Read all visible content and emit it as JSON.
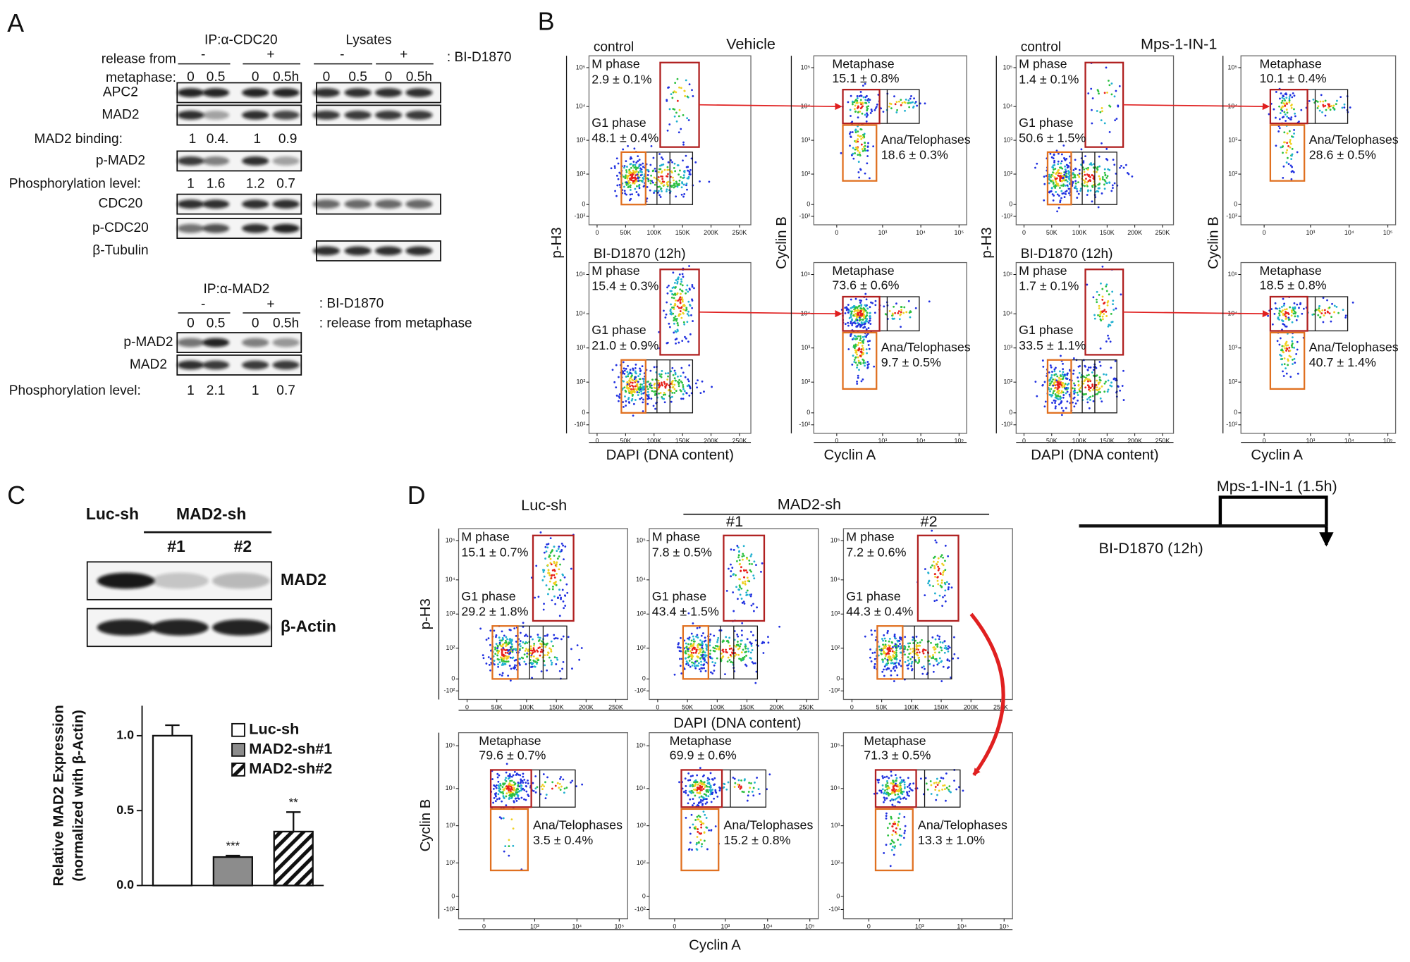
{
  "panel_a": {
    "label": "A",
    "cdc20_ip": {
      "title": "IP:α-CDC20",
      "treatment": [
        "-",
        "+"
      ],
      "times": [
        "0",
        "0.5",
        "0",
        "0.5h"
      ]
    },
    "lysates": {
      "title": "Lysates",
      "treatment": [
        "-",
        "+"
      ],
      "times": [
        "0",
        "0.5",
        "0",
        "0.5h"
      ]
    },
    "release_label": [
      "release from",
      "metaphase:"
    ],
    "drug_label": ": BI-D1870",
    "blots": {
      "apc2": "APC2",
      "mad2": "MAD2",
      "p_mad2": "p-MAD2",
      "cdc20": "CDC20",
      "p_cdc20": "p-CDC20",
      "tubulin": "β-Tubulin"
    },
    "mad2_binding": {
      "label": "MAD2 binding:",
      "values": [
        "1",
        "0.4.",
        "1",
        "0.9"
      ]
    },
    "phosphorylation": {
      "label": "Phosphorylation level:",
      "values": [
        "1",
        "1.6",
        "1.2",
        "0.7"
      ]
    },
    "mad2_ip": {
      "title": "IP:α-MAD2",
      "drug_label": ": BI-D1870",
      "treatment": [
        "-",
        "+"
      ],
      "times": [
        "0",
        "0.5",
        "0",
        "0.5h"
      ],
      "release_label": ": release from metaphase",
      "blots": [
        "p-MAD2",
        "MAD2"
      ],
      "phosphorylation": {
        "label": "Phosphorylation level:",
        "values": [
          "1",
          "2.1",
          "1",
          "0.7"
        ]
      }
    }
  },
  "flow_axes": {
    "dapi_ticks": [
      "0",
      "50K",
      "100K",
      "150K",
      "200K",
      "250K"
    ],
    "log_ticks": [
      "-10²",
      "0",
      "10²",
      "10³",
      "10⁴",
      "10⁵"
    ],
    "cyclin_a_ticks": [
      "0",
      "10³",
      "10⁴",
      "10⁵"
    ]
  },
  "panel_b": {
    "label": "B",
    "axis_labels": {
      "ph3": "p-H3",
      "cyclin_b": "Cyclin B",
      "dapi": "DAPI (DNA content)",
      "cyclin_a": "Cyclin A"
    },
    "groups": [
      {
        "title": "Vehicle",
        "plots": [
          {
            "condition": "control",
            "m_phase": "M phase",
            "m_value": "2.9 ± 0.1%",
            "g1_phase": "G1 phase",
            "g1_value": "48.1 ± 0.4%",
            "metaphase": "Metaphase",
            "meta_value": "15.1 ± 0.8%",
            "ana": "Ana/Telophases",
            "ana_value": "18.6 ± 0.3%"
          },
          {
            "condition": "BI-D1870 (12h)",
            "m_phase": "M phase",
            "m_value": "15.4 ± 0.3%",
            "g1_phase": "G1 phase",
            "g1_value": "21.0 ± 0.9%",
            "metaphase": "Metaphase",
            "meta_value": "73.6 ± 0.6%",
            "ana": "Ana/Telophases",
            "ana_value": "9.7 ± 0.5%"
          }
        ]
      },
      {
        "title": "Mps-1-IN-1",
        "plots": [
          {
            "condition": "control",
            "m_phase": "M phase",
            "m_value": "1.4 ± 0.1%",
            "g1_phase": "G1 phase",
            "g1_value": "50.6 ± 1.5%",
            "metaphase": "Metaphase",
            "meta_value": "10.1 ± 0.4%",
            "ana": "Ana/Telophases",
            "ana_value": "28.6 ± 0.5%"
          },
          {
            "condition": "BI-D1870 (12h)",
            "m_phase": "M phase",
            "m_value": "1.7 ± 0.1%",
            "g1_phase": "G1 phase",
            "g1_value": "33.5 ± 1.1%",
            "metaphase": "Metaphase",
            "meta_value": "18.5 ± 0.8%",
            "ana": "Ana/Telophases",
            "ana_value": "40.7 ± 1.4%"
          }
        ]
      }
    ]
  },
  "panel_c": {
    "label": "C",
    "blot": {
      "control": "Luc-sh",
      "knockdown": "MAD2-sh",
      "clones": [
        "#1",
        "#2"
      ],
      "rows": [
        "MAD2",
        "β-Actin"
      ]
    }
  },
  "chart_data": {
    "type": "bar",
    "y_label": [
      "Relative MAD2 Expression",
      "(normalized with β-Actin)"
    ],
    "categories": [
      null,
      null,
      null
    ],
    "ylim": [
      0,
      1.2
    ],
    "yticks": [
      {
        "value": 0,
        "label": "0.0"
      },
      {
        "value": 0.5,
        "label": "0.5"
      },
      {
        "value": 1,
        "label": "1.0"
      }
    ],
    "grid": false,
    "series": [
      {
        "name": "Luc-sh",
        "color": "#ffffff",
        "hatch": false,
        "values": [
          1.0,
          null,
          null
        ],
        "errors": [
          0.07,
          null,
          null
        ]
      },
      {
        "name": "MAD2-sh#1",
        "color": "#8c8c8c",
        "hatch": false,
        "values": [
          null,
          0.19,
          null
        ],
        "errors": [
          null,
          0.01,
          null
        ]
      },
      {
        "name": "MAD2-sh#2",
        "color": "#ffffff",
        "hatch": true,
        "values": [
          null,
          null,
          0.36
        ],
        "errors": [
          null,
          null,
          0.13
        ]
      }
    ],
    "annotations": [
      null,
      "***",
      "**"
    ]
  },
  "panel_d": {
    "label": "D",
    "knockdown_header": "MAD2-sh",
    "axis_labels": {
      "ph3": "p-H3",
      "cyclin_b": "Cyclin B",
      "dapi": "DAPI (DNA content)",
      "cyclin_a": "Cyclin A"
    },
    "plots": [
      {
        "column": "Luc-sh",
        "m_phase": "M phase",
        "m_value": "15.1 ± 0.7%",
        "g1_phase": "G1 phase",
        "g1_value": "29.2 ± 1.8%",
        "metaphase": "Metaphase",
        "meta_value": "79.6 ± 0.7%",
        "ana": "Ana/Telophases",
        "ana_value": "3.5 ± 0.4%"
      },
      {
        "column": "#1",
        "m_phase": "M phase",
        "m_value": "7.8 ± 0.5%",
        "g1_phase": "G1 phase",
        "g1_value": "43.4 ± 1.5%",
        "metaphase": "Metaphase",
        "meta_value": "69.9 ± 0.6%",
        "ana": "Ana/Telophases",
        "ana_value": "15.2 ± 0.8%"
      },
      {
        "column": "#2",
        "m_phase": "M phase",
        "m_value": "7.2 ± 0.6%",
        "g1_phase": "G1 phase",
        "g1_value": "44.3 ± 0.4%",
        "metaphase": "Metaphase",
        "meta_value": "71.3 ± 0.5%",
        "ana": "Ana/Telophases",
        "ana_value": "13.3 ± 1.0%"
      }
    ]
  },
  "schematic": {
    "short_treatment": "Mps-1-IN-1 (1.5h)",
    "long_treatment": "BI-D1870 (12h)"
  }
}
